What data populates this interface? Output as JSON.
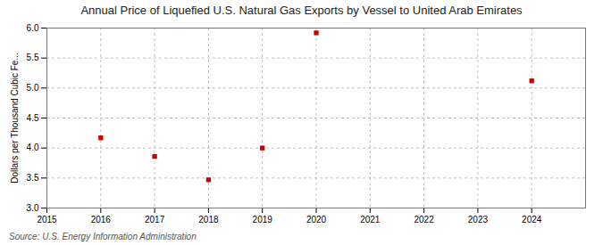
{
  "chart_data": {
    "type": "scatter",
    "title": "Annual Price of Liquefied U.S. Natural Gas Exports by Vessel to United Arab Emirates",
    "ylabel": "Dollars per Thousand Cubic Fe...",
    "source": "Source: U.S. Energy Information Administration",
    "x": [
      2016,
      2017,
      2018,
      2019,
      2020,
      2024
    ],
    "values": [
      4.17,
      3.86,
      3.47,
      4.0,
      5.92,
      5.12
    ],
    "color": "#cc0000",
    "marker": "square",
    "xlim": [
      2015,
      2025
    ],
    "ylim": [
      3.0,
      6.0
    ],
    "xticks": [
      2015,
      2016,
      2017,
      2018,
      2019,
      2020,
      2021,
      2022,
      2023,
      2024
    ],
    "yticks": [
      {
        "value": 3.0,
        "label": "3.0"
      },
      3.5,
      {
        "value": 4.0,
        "label": "4.0"
      },
      4.5,
      {
        "value": 5.0,
        "label": "5.0"
      },
      5.5,
      {
        "value": 6.0,
        "label": "6.0"
      }
    ],
    "grid": true
  }
}
